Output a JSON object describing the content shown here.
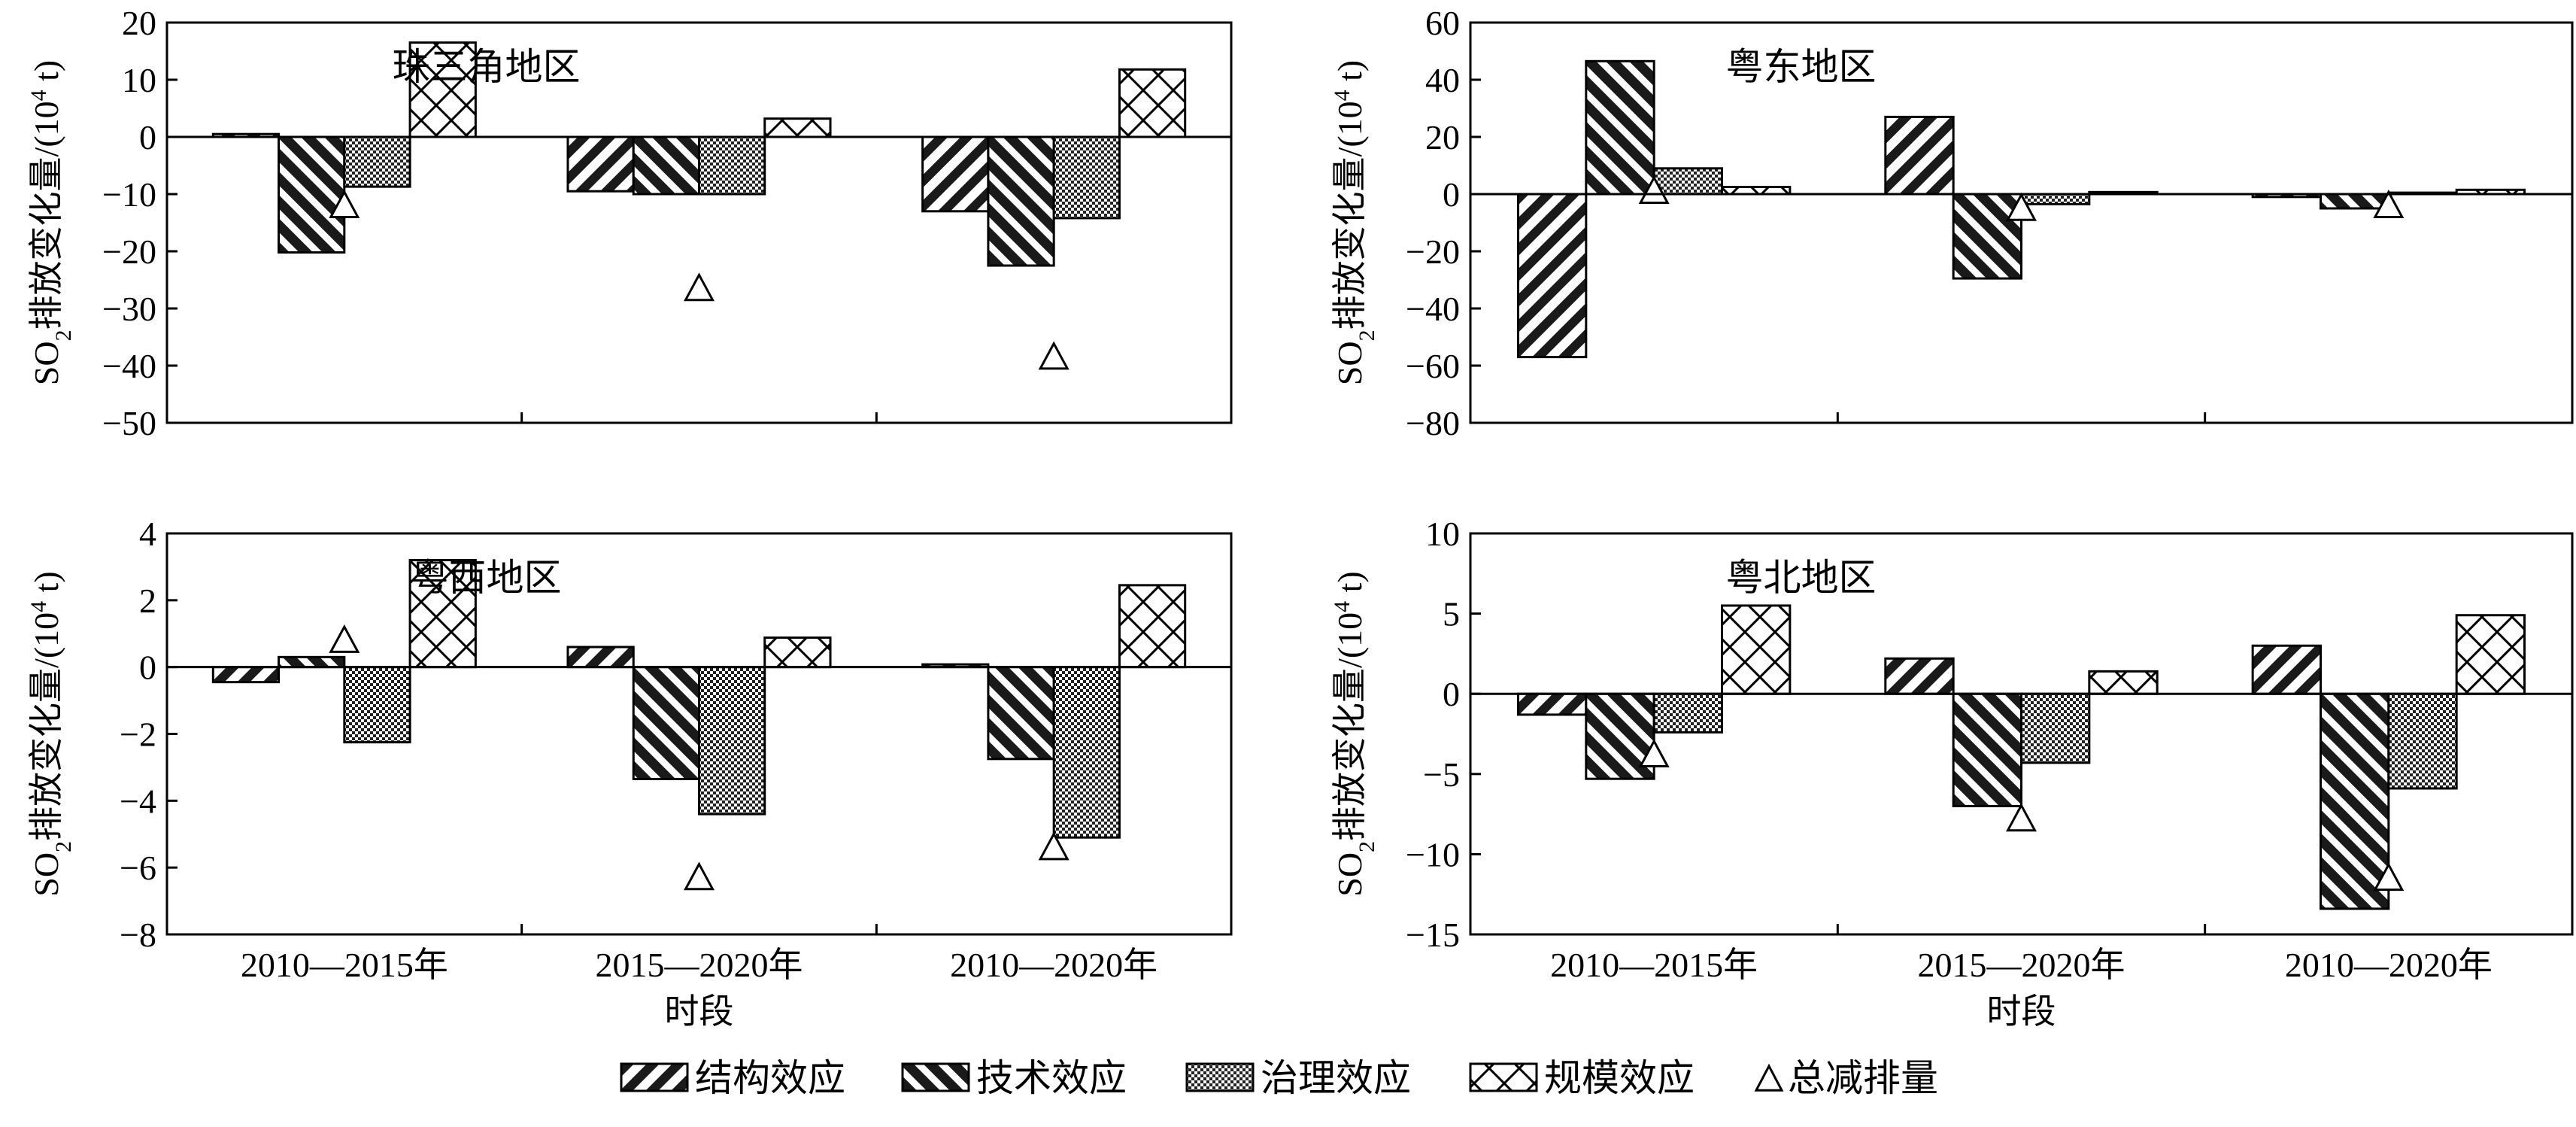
{
  "chart_data": [
    {
      "type": "bar",
      "title": "珠三角地区",
      "xlabel": "",
      "ylabel": "SO₂排放变化量/(10⁴ t)",
      "ylabel_parts": {
        "pre": "SO",
        "sub": "2",
        "mid": "排放变化量/(10",
        "sup": "4",
        "post": " t)"
      },
      "ylim": [
        -50,
        20
      ],
      "yticks": [
        20,
        10,
        0,
        -10,
        -20,
        -30,
        -40,
        -50
      ],
      "categories": [
        "2010—2015年",
        "2015—2020年",
        "2010—2020年"
      ],
      "series": [
        {
          "name": "结构效应",
          "values": [
            0.5,
            -9.5,
            -13
          ]
        },
        {
          "name": "技术效应",
          "values": [
            -20.2,
            -10,
            -22.5
          ]
        },
        {
          "name": "治理效应",
          "values": [
            -8.7,
            -10,
            -14.2
          ]
        },
        {
          "name": "规模效应",
          "values": [
            16.5,
            3.2,
            11.8
          ]
        }
      ],
      "total": {
        "name": "总减排量",
        "values": [
          -12,
          -26.5,
          -38.5
        ]
      }
    },
    {
      "type": "bar",
      "title": "粤东地区",
      "xlabel": "",
      "ylabel": "SO₂排放变化量/(10⁴ t)",
      "ylabel_parts": {
        "pre": "SO",
        "sub": "2",
        "mid": "排放变化量/(10",
        "sup": "4",
        "post": " t)"
      },
      "ylim": [
        -80,
        60
      ],
      "yticks": [
        60,
        40,
        20,
        0,
        -20,
        -40,
        -60,
        -80
      ],
      "categories": [
        "2010—2015年",
        "2015—2020年",
        "2010—2020年"
      ],
      "series": [
        {
          "name": "结构效应",
          "values": [
            -57,
            27,
            -1
          ]
        },
        {
          "name": "技术效应",
          "values": [
            46.5,
            -29.5,
            -5
          ]
        },
        {
          "name": "治理效应",
          "values": [
            9,
            -3.5,
            0.5
          ]
        },
        {
          "name": "规模效应",
          "values": [
            2.5,
            0.7,
            1.5
          ]
        }
      ],
      "total": {
        "name": "总减排量",
        "values": [
          1,
          -5,
          -4
        ]
      }
    },
    {
      "type": "bar",
      "title": "粤西地区",
      "xlabel": "时段",
      "ylabel": "SO₂排放变化量/(10⁴ t)",
      "ylabel_parts": {
        "pre": "SO",
        "sub": "2",
        "mid": "排放变化量/(10",
        "sup": "4",
        "post": " t)"
      },
      "ylim": [
        -8,
        4
      ],
      "yticks": [
        4,
        2,
        0,
        -2,
        -4,
        -6,
        -8
      ],
      "categories": [
        "2010—2015年",
        "2015—2020年",
        "2010—2020年"
      ],
      "series": [
        {
          "name": "结构效应",
          "values": [
            -0.45,
            0.6,
            0.08
          ]
        },
        {
          "name": "技术效应",
          "values": [
            0.3,
            -3.35,
            -2.75
          ]
        },
        {
          "name": "治理效应",
          "values": [
            -2.25,
            -4.4,
            -5.1
          ]
        },
        {
          "name": "规模效应",
          "values": [
            3.2,
            0.88,
            2.45
          ]
        }
      ],
      "total": {
        "name": "总减排量",
        "values": [
          0.8,
          -6.3,
          -5.4
        ]
      }
    },
    {
      "type": "bar",
      "title": "粤北地区",
      "xlabel": "时段",
      "ylabel": "SO₂排放变化量/(10⁴ t)",
      "ylabel_parts": {
        "pre": "SO",
        "sub": "2",
        "mid": "排放变化量/(10",
        "sup": "4",
        "post": " t)"
      },
      "ylim": [
        -15,
        10
      ],
      "yticks": [
        10,
        5,
        0,
        -5,
        -10,
        -15
      ],
      "categories": [
        "2010—2015年",
        "2015—2020年",
        "2010—2020年"
      ],
      "series": [
        {
          "name": "结构效应",
          "values": [
            -1.3,
            2.2,
            3
          ]
        },
        {
          "name": "技术效应",
          "values": [
            -5.3,
            -7,
            -13.4
          ]
        },
        {
          "name": "治理效应",
          "values": [
            -2.4,
            -4.3,
            -5.9
          ]
        },
        {
          "name": "规模效应",
          "values": [
            5.5,
            1.4,
            4.9
          ]
        }
      ],
      "total": {
        "name": "总减排量",
        "values": [
          -3.8,
          -7.8,
          -11.5
        ]
      }
    }
  ],
  "legend": [
    {
      "label": "结构效应",
      "pattern": "structure"
    },
    {
      "label": "技术效应",
      "pattern": "technique"
    },
    {
      "label": "治理效应",
      "pattern": "governance"
    },
    {
      "label": "规模效应",
      "pattern": "scale"
    },
    {
      "label": "总减排量",
      "pattern": "triangle"
    }
  ]
}
